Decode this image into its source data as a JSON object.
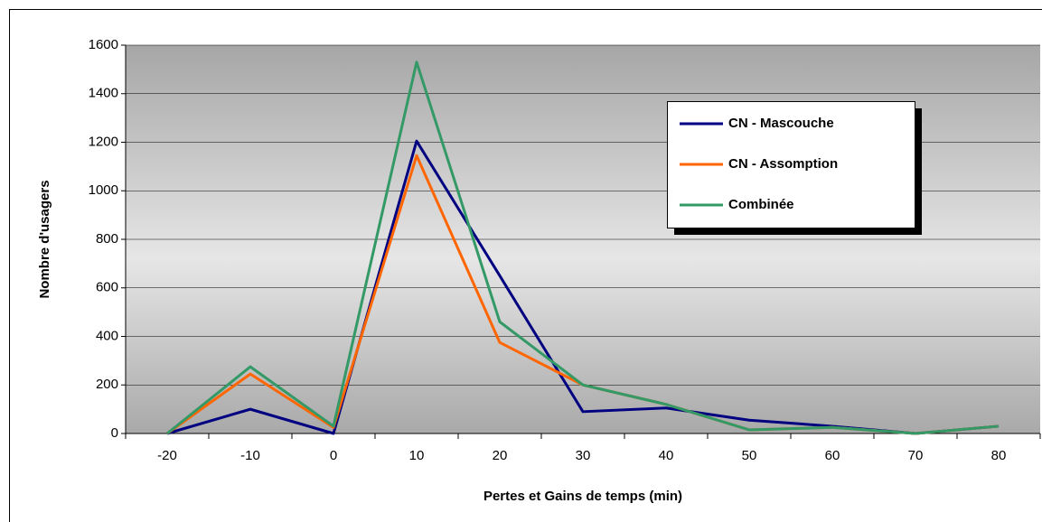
{
  "chart_data": {
    "type": "line",
    "x_label": "Pertes et Gains de temps (min)",
    "y_label": "Nombre d'usagers",
    "x": [
      -20,
      -10,
      0,
      10,
      20,
      30,
      40,
      50,
      60,
      70,
      80
    ],
    "xlim": [
      -25,
      85
    ],
    "xticks": [
      -20,
      -10,
      0,
      10,
      20,
      30,
      40,
      50,
      60,
      70,
      80
    ],
    "ylim": [
      0,
      1600
    ],
    "yticks": [
      0,
      200,
      400,
      600,
      800,
      1000,
      1200,
      1400,
      1600
    ],
    "grid": true,
    "legend": "upper right",
    "series": [
      {
        "name": "CN - Mascouche",
        "color": "#000080",
        "values": [
          0,
          100,
          0,
          1205,
          650,
          90,
          105,
          55,
          30,
          0,
          30
        ]
      },
      {
        "name": "CN - Assomption",
        "color": "#ff6600",
        "values": [
          0,
          245,
          25,
          1145,
          375,
          200,
          120,
          15,
          25,
          0,
          30
        ]
      },
      {
        "name": "Combinée",
        "color": "#339966",
        "values": [
          0,
          275,
          30,
          1530,
          460,
          200,
          120,
          15,
          25,
          0,
          30
        ]
      }
    ]
  }
}
